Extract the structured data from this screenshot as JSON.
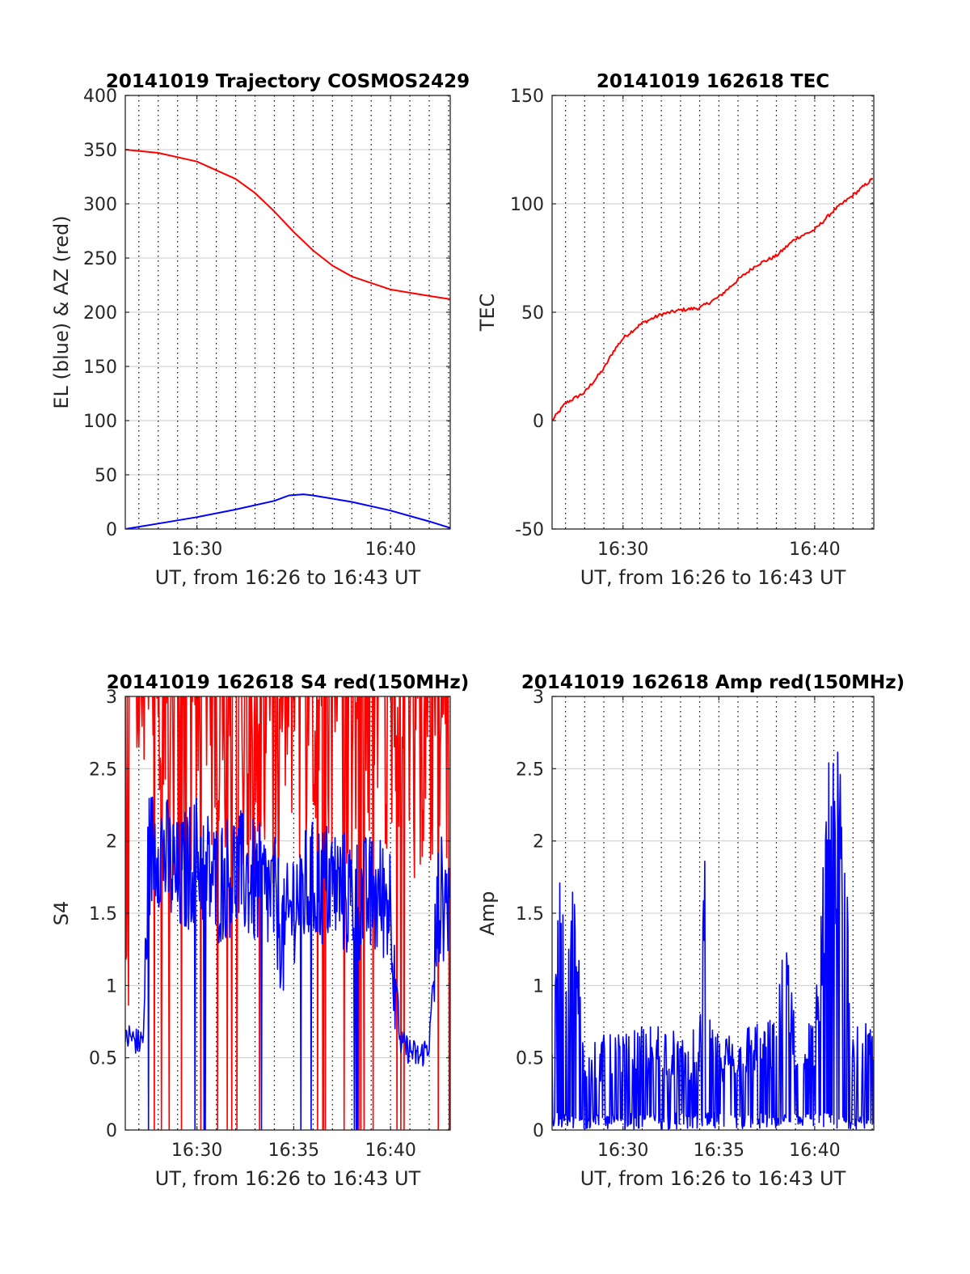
{
  "colors": {
    "red": "#ff0000",
    "blue": "#0000ff",
    "grid": "#cccccc",
    "axis": "#262626"
  },
  "chart_data": [
    {
      "type": "line",
      "title": "20141019 Trajectory COSMOS2429",
      "xlabel": "UT, from 16:26 to 16:43 UT",
      "ylabel": "EL (blue) & AZ (red)",
      "xlim": [
        "16:26:18",
        "16:43:05"
      ],
      "ylim": [
        0,
        400
      ],
      "xticks": [
        "16:30",
        "16:40"
      ],
      "yticks": [
        0,
        50,
        100,
        150,
        200,
        250,
        300,
        350,
        400
      ],
      "minute_gridlines": true,
      "series": [
        {
          "color": "#ff0000",
          "x": [
            "16:26:18",
            "16:28:00",
            "16:30:00",
            "16:32:00",
            "16:33:00",
            "16:34:00",
            "16:35:00",
            "16:36:00",
            "16:37:00",
            "16:38:00",
            "16:40:00",
            "16:42:00",
            "16:43:05"
          ],
          "y": [
            350,
            347,
            339,
            323,
            310,
            293,
            274,
            257,
            243,
            233,
            221,
            215,
            212
          ]
        },
        {
          "color": "#0000ff",
          "x": [
            "16:26:18",
            "16:28:00",
            "16:30:00",
            "16:32:00",
            "16:34:00",
            "16:34:45",
            "16:35:30",
            "16:36:00",
            "16:38:00",
            "16:40:00",
            "16:42:00",
            "16:43:05"
          ],
          "y": [
            0,
            5,
            11,
            18,
            26,
            31,
            32,
            31,
            25,
            17,
            7,
            1
          ]
        }
      ]
    },
    {
      "type": "line",
      "title": "20141019 162618 TEC",
      "xlabel": "UT, from 16:26 to 16:43 UT",
      "ylabel": "TEC",
      "xlim": [
        "16:26:18",
        "16:43:05"
      ],
      "ylim": [
        -50,
        150
      ],
      "xticks": [
        "16:30",
        "16:40"
      ],
      "yticks": [
        -50,
        0,
        50,
        100,
        150
      ],
      "minute_gridlines": true,
      "series": [
        {
          "color": "#ff0000",
          "x": [
            "16:26:18",
            "16:27:00",
            "16:28:00",
            "16:29:00",
            "16:29:30",
            "16:30:00",
            "16:31:00",
            "16:32:00",
            "16:33:00",
            "16:34:00",
            "16:35:00",
            "16:36:00",
            "16:37:00",
            "16:38:00",
            "16:39:00",
            "16:40:00",
            "16:41:00",
            "16:42:00",
            "16:43:05"
          ],
          "y": [
            0,
            8,
            13,
            24,
            32,
            38,
            45,
            49,
            51,
            52,
            57,
            65,
            72,
            76,
            84,
            88,
            97,
            104,
            112
          ]
        }
      ]
    },
    {
      "type": "line",
      "title": "20141019 162618 S4 red(150MHz)",
      "xlabel": "UT, from 16:26 to 16:43 UT",
      "ylabel": "S4",
      "xlim": [
        "16:26:18",
        "16:43:05"
      ],
      "ylim": [
        0,
        3
      ],
      "xticks": [
        "16:30",
        "16:35",
        "16:40"
      ],
      "yticks": [
        0,
        0.5,
        1,
        1.5,
        2,
        2.5,
        3
      ],
      "minute_gridlines": true,
      "series": [
        {
          "color": "#ff0000",
          "style": "noisy",
          "x": [
            "16:26:18",
            "16:26:45",
            "16:27:15",
            "16:28:00",
            "16:29:00",
            "16:30:00",
            "16:31:00",
            "16:32:00",
            "16:33:00",
            "16:34:00",
            "16:35:00",
            "16:36:00",
            "16:37:00",
            "16:38:00",
            "16:39:00",
            "16:40:00",
            "16:41:00",
            "16:42:00",
            "16:43:05"
          ],
          "y": [
            0.6,
            2.5,
            3.0,
            2.6,
            2.4,
            2.5,
            2.6,
            2.6,
            2.4,
            2.5,
            2.6,
            2.6,
            2.7,
            2.6,
            2.6,
            2.4,
            2.5,
            2.6,
            2.6
          ]
        },
        {
          "color": "#0000ff",
          "style": "noisy",
          "x": [
            "16:26:18",
            "16:26:30",
            "16:27:00",
            "16:27:15",
            "16:27:30",
            "16:28:00",
            "16:29:00",
            "16:30:00",
            "16:31:00",
            "16:32:00",
            "16:33:00",
            "16:34:00",
            "16:34:30",
            "16:35:00",
            "16:36:00",
            "16:37:00",
            "16:38:00",
            "16:39:00",
            "16:40:00",
            "16:40:30",
            "16:41:30",
            "16:42:00",
            "16:42:30",
            "16:43:05"
          ],
          "y": [
            0.6,
            0.65,
            0.6,
            0.65,
            1.9,
            2.0,
            1.7,
            1.9,
            1.7,
            1.8,
            1.7,
            1.6,
            1.3,
            1.6,
            1.7,
            1.7,
            1.6,
            1.6,
            1.6,
            0.6,
            0.5,
            0.6,
            1.6,
            1.6
          ]
        }
      ]
    },
    {
      "type": "line",
      "title": "20141019 162618 Amp red(150MHz)",
      "xlabel": "UT, from 16:26 to 16:43 UT",
      "ylabel": "Amp",
      "xlim": [
        "16:26:18",
        "16:43:05"
      ],
      "ylim": [
        0,
        3
      ],
      "xticks": [
        "16:30",
        "16:35",
        "16:40"
      ],
      "yticks": [
        0,
        0.5,
        1,
        1.5,
        2,
        2.5,
        3
      ],
      "minute_gridlines": true,
      "series": [
        {
          "color": "#0000ff",
          "style": "noisy",
          "x": [
            "16:26:18",
            "16:26:30",
            "16:27:00",
            "16:27:30",
            "16:28:00",
            "16:29:00",
            "16:30:00",
            "16:31:00",
            "16:32:00",
            "16:33:00",
            "16:34:00",
            "16:34:15",
            "16:34:30",
            "16:35:00",
            "16:36:00",
            "16:37:00",
            "16:38:00",
            "16:38:30",
            "16:39:00",
            "16:40:00",
            "16:40:40",
            "16:41:00",
            "16:41:30",
            "16:42:00",
            "16:43:05"
          ],
          "y": [
            0.55,
            1.6,
            1.6,
            1.5,
            0.6,
            0.6,
            0.6,
            0.65,
            0.7,
            0.6,
            0.65,
            1.85,
            0.7,
            0.6,
            0.65,
            0.7,
            0.7,
            1.4,
            0.7,
            0.7,
            2.3,
            2.55,
            2.2,
            0.8,
            0.6
          ]
        }
      ]
    }
  ]
}
